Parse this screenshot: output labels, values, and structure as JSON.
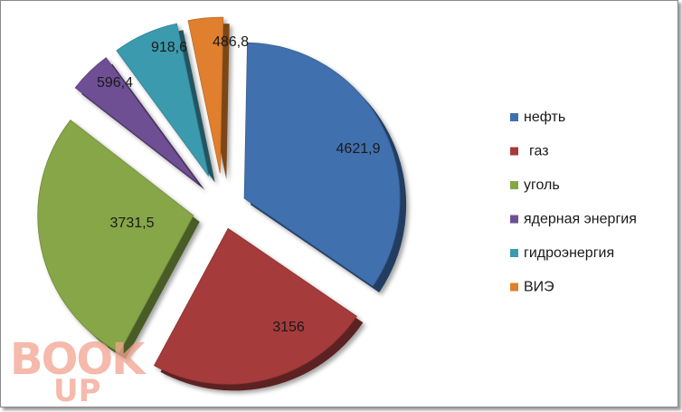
{
  "chart_data": {
    "type": "pie",
    "exploded": true,
    "legend_position": "right",
    "categories": [
      "нефть",
      "газ",
      "уголь",
      "ядерная энергия",
      "гидроэнергия",
      "ВИЭ"
    ],
    "values": [
      4621.9,
      3156,
      3731.5,
      596.4,
      918.6,
      486.8
    ],
    "data_labels": [
      "4621,9",
      "3156",
      "3731,5",
      "596,4",
      "918,6",
      "486,8"
    ],
    "colors": [
      "#3F6FAE",
      "#A63B3B",
      "#86A646",
      "#6E4F94",
      "#3A9AAE",
      "#E07F2E"
    ]
  },
  "watermark": {
    "line1": "BOOK",
    "line2": "UP",
    "color": "#F2A38F"
  }
}
